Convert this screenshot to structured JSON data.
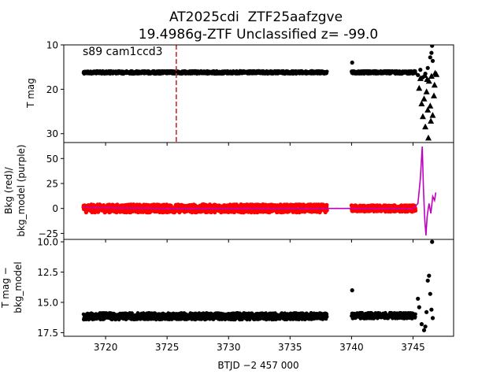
{
  "title_line1": "AT2025cdi  ZTF25aafzgve",
  "title_line2": "19.4986g-ZTF Unclassified z= -99.0",
  "colors": {
    "flux": "#000000",
    "bkg": "#ff0000",
    "bkg_model": "#bf00bf",
    "marker_line": "#d62728",
    "axes": "#000000"
  },
  "chart_data": [
    {
      "type": "scatter",
      "panel": "top",
      "ylabel": "T mag",
      "annotation": "s89 cam1ccd3",
      "y_inverted": true,
      "ylim": [
        10,
        32
      ],
      "xlim": [
        3716.6,
        3748.3
      ],
      "yticks": [
        "10",
        "20",
        "30"
      ],
      "ytick_values": [
        10,
        20,
        30
      ],
      "vline_x": 3725.75,
      "series": [
        {
          "marker": "dot",
          "segments": [
            {
              "x_start": 3718.2,
              "x_end": 3738.0,
              "y": 16.2,
              "spread": 0.4
            },
            {
              "x_start": 3740.0,
              "x_end": 3745.2,
              "y": 16.2,
              "spread": 0.4
            }
          ],
          "extra_points": [
            [
              3740.05,
              14.0
            ],
            [
              3745.4,
              16.8
            ],
            [
              3745.6,
              15.6
            ],
            [
              3745.8,
              17.3
            ],
            [
              3746.0,
              16.5
            ],
            [
              3746.2,
              15.2
            ],
            [
              3746.4,
              12.8
            ],
            [
              3746.5,
              11.8
            ],
            [
              3746.55,
              10.2
            ],
            [
              3746.6,
              13.6
            ]
          ]
        },
        {
          "marker": "triangle",
          "points": [
            [
              3745.5,
              19.8
            ],
            [
              3745.7,
              23.3
            ],
            [
              3745.8,
              26.2
            ],
            [
              3745.9,
              22.2
            ],
            [
              3746.0,
              28.5
            ],
            [
              3746.1,
              20.6
            ],
            [
              3746.2,
              24.7
            ],
            [
              3746.25,
              31.0
            ],
            [
              3746.3,
              18.2
            ],
            [
              3746.4,
              23.8
            ],
            [
              3746.5,
              17.1
            ],
            [
              3746.6,
              25.9
            ],
            [
              3746.7,
              21.5
            ],
            [
              3746.8,
              16.4
            ],
            [
              3746.9,
              16.7
            ],
            [
              3745.6,
              17.6
            ],
            [
              3745.95,
              16.9
            ],
            [
              3746.15,
              17.8
            ],
            [
              3746.45,
              27.2
            ],
            [
              3746.75,
              19.1
            ]
          ]
        }
      ]
    },
    {
      "type": "scatter",
      "panel": "middle",
      "ylabel_line1": "Bkg (red)/",
      "ylabel_line2": "bkg_model (purple)",
      "ylim": [
        -31,
        66
      ],
      "yticks": [
        "50",
        "25",
        "0",
        "−25"
      ],
      "ytick_values": [
        50,
        25,
        0,
        -25
      ],
      "series": [
        {
          "name": "Bkg",
          "color": "#ff0000",
          "segments": [
            {
              "x_start": 3718.2,
              "x_end": 3738.0,
              "y": 0,
              "spread": 5
            },
            {
              "x_start": 3740.0,
              "x_end": 3745.2,
              "y": 0,
              "spread": 4
            }
          ]
        },
        {
          "name": "bkg_model",
          "color": "#bf00bf",
          "line": [
            [
              3718.2,
              1
            ],
            [
              3725,
              0
            ],
            [
              3733,
              0
            ],
            [
              3738,
              0
            ],
            [
              3740,
              0
            ],
            [
              3745.0,
              0
            ],
            [
              3745.4,
              5
            ],
            [
              3745.6,
              30
            ],
            [
              3745.75,
              62
            ],
            [
              3745.85,
              20
            ],
            [
              3745.95,
              -10
            ],
            [
              3746.05,
              -27
            ],
            [
              3746.15,
              -8
            ],
            [
              3746.3,
              5
            ],
            [
              3746.45,
              -5
            ],
            [
              3746.6,
              12
            ],
            [
              3746.75,
              8
            ],
            [
              3746.85,
              16
            ]
          ]
        }
      ]
    },
    {
      "type": "scatter",
      "panel": "bottom",
      "ylabel_line1": "T mag −",
      "ylabel_line2": "bkg_model",
      "y_inverted": true,
      "ylim": [
        9.8,
        17.8
      ],
      "yticks": [
        "10.0",
        "12.5",
        "15.0",
        "17.5"
      ],
      "ytick_values": [
        10.0,
        12.5,
        15.0,
        17.5
      ],
      "xlabel": "BTJD −2 457 000",
      "xticks": [
        "3720",
        "3725",
        "3730",
        "3735",
        "3740",
        "3745"
      ],
      "xtick_values": [
        3720,
        3725,
        3730,
        3735,
        3740,
        3745
      ],
      "series": [
        {
          "marker": "dot",
          "segments": [
            {
              "x_start": 3718.2,
              "x_end": 3738.0,
              "y": 16.15,
              "spread": 0.35
            },
            {
              "x_start": 3740.0,
              "x_end": 3745.2,
              "y": 16.1,
              "spread": 0.3
            }
          ],
          "extra_points": [
            [
              3740.05,
              14.0
            ],
            [
              3745.4,
              14.7
            ],
            [
              3745.5,
              15.4
            ],
            [
              3745.7,
              16.8
            ],
            [
              3745.9,
              17.3
            ],
            [
              3746.0,
              17.0
            ],
            [
              3746.1,
              15.8
            ],
            [
              3746.2,
              13.2
            ],
            [
              3746.3,
              12.8
            ],
            [
              3746.4,
              14.3
            ],
            [
              3746.5,
              15.6
            ],
            [
              3746.55,
              10.0
            ],
            [
              3746.6,
              16.3
            ]
          ]
        }
      ]
    }
  ]
}
